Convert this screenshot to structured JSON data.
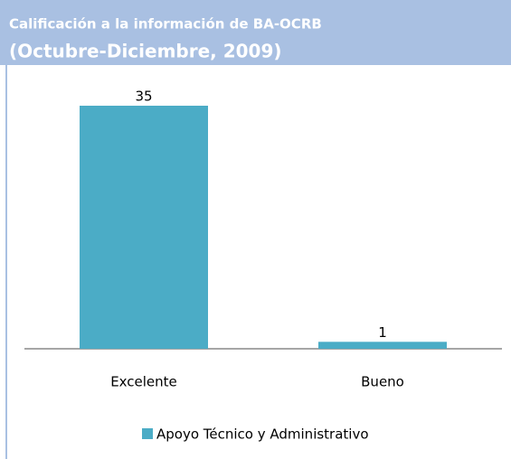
{
  "chart_data": {
    "type": "bar",
    "title": "Calificación a la información de BA-OCRB",
    "subtitle": "(Octubre-Diciembre, 2009)",
    "categories": [
      "Excelente",
      "Bueno"
    ],
    "series": [
      {
        "name": "Apoyo Técnico y Administrativo",
        "color": "#4bacc6",
        "values": [
          35,
          1
        ]
      }
    ],
    "legend": "bottom"
  }
}
